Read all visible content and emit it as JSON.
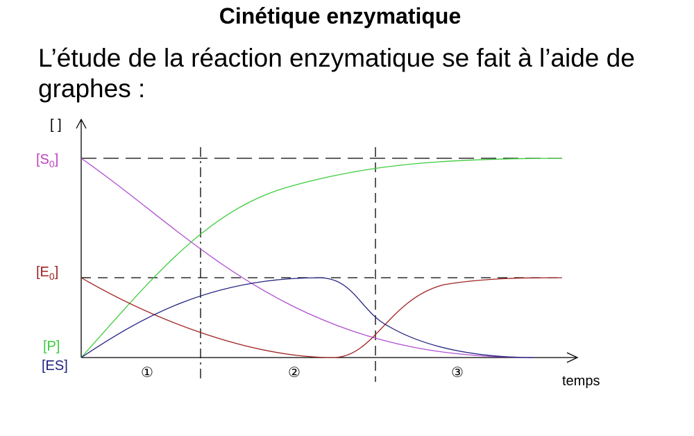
{
  "header": {
    "title": "Cinétique enzymatique"
  },
  "paragraph": {
    "lines": [
      "L’étude de la réaction enzymatique se fait à l’aide de",
      "graphes :"
    ]
  },
  "diagram": {
    "y_axis_label": "[ ]",
    "x_axis_label": "temps",
    "s0": {
      "open": "[S",
      "sub": "0",
      "close": "]"
    },
    "e0": {
      "open": "[E",
      "sub": "0",
      "close": "]"
    },
    "p": "[P]",
    "es": "[ES]",
    "phases": [
      "①",
      "②",
      "③"
    ]
  }
}
